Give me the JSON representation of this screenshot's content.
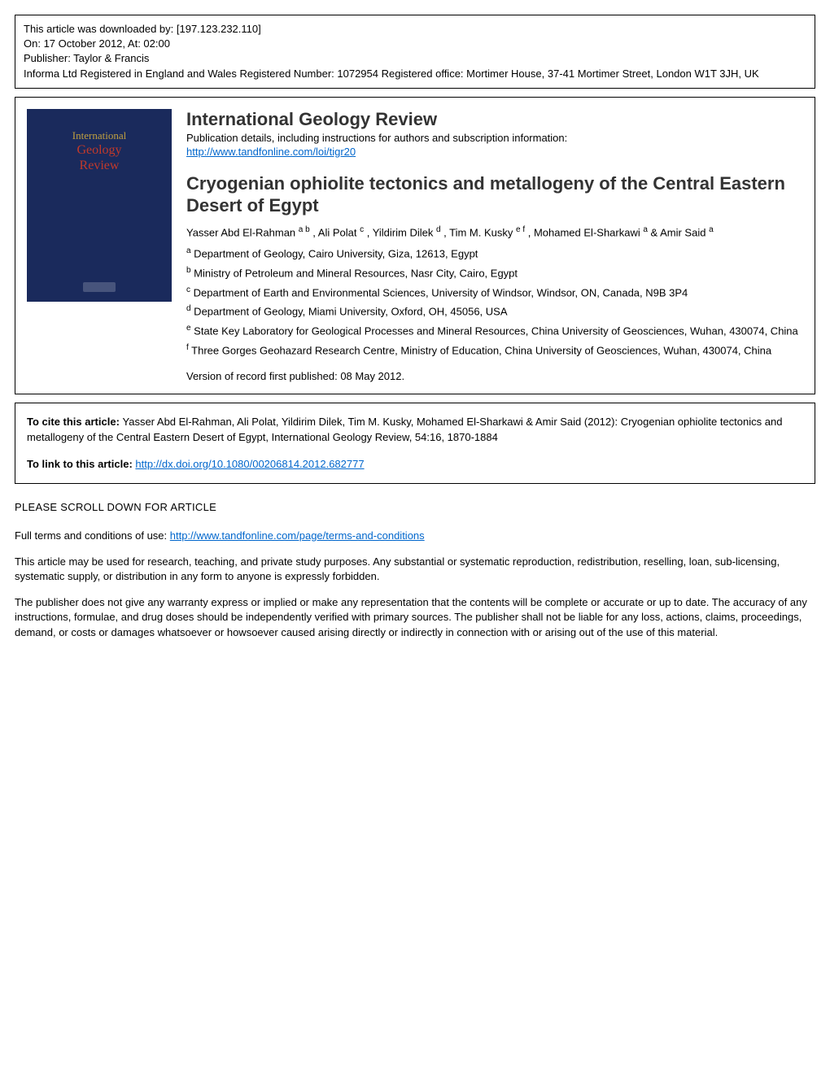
{
  "download_info": {
    "line1": "This article was downloaded by: [197.123.232.110]",
    "line2": "On: 17 October 2012, At: 02:00",
    "line3": "Publisher: Taylor & Francis",
    "line4": "Informa Ltd Registered in England and Wales Registered Number: 1072954 Registered office: Mortimer House, 37-41 Mortimer Street, London W1T 3JH, UK"
  },
  "cover": {
    "intl": "International",
    "geology": "Geology",
    "review": "Review"
  },
  "journal": {
    "title": "International Geology Review",
    "pub_details": "Publication details, including instructions for authors and subscription information:",
    "url": "http://www.tandfonline.com/loi/tigr20"
  },
  "article": {
    "title": "Cryogenian ophiolite tectonics and metallogeny of the Central Eastern Desert of Egypt",
    "authors_html": "Yasser Abd El-Rahman <sup>a b</sup> , Ali Polat <sup>c</sup> , Yildirim Dilek <sup>d</sup> , Tim M. Kusky <sup>e f</sup> , Mohamed El-Sharkawi <sup>a</sup> & Amir Said <sup>a</sup>",
    "affiliations": [
      {
        "sup": "a",
        "text": " Department of Geology, Cairo University, Giza, 12613, Egypt"
      },
      {
        "sup": "b",
        "text": " Ministry of Petroleum and Mineral Resources, Nasr City, Cairo, Egypt"
      },
      {
        "sup": "c",
        "text": " Department of Earth and Environmental Sciences, University of Windsor, Windsor, ON, Canada, N9B 3P4"
      },
      {
        "sup": "d",
        "text": " Department of Geology, Miami University, Oxford, OH, 45056, USA"
      },
      {
        "sup": "e",
        "text": " State Key Laboratory for Geological Processes and Mineral Resources, China University of Geosciences, Wuhan, 430074, China"
      },
      {
        "sup": "f",
        "text": " Three Gorges Geohazard Research Centre, Ministry of Education, China University of Geosciences, Wuhan, 430074, China"
      }
    ],
    "version": "Version of record first published: 08 May 2012."
  },
  "citation": {
    "cite_label": "To cite this article: ",
    "cite_text": "Yasser Abd El-Rahman, Ali Polat, Yildirim Dilek, Tim M. Kusky, Mohamed El-Sharkawi & Amir Said (2012): Cryogenian ophiolite tectonics and metallogeny of the Central Eastern Desert of Egypt, International Geology Review, 54:16, 1870-1884",
    "link_label": "To link to this article:  ",
    "doi": "http://dx.doi.org/10.1080/00206814.2012.682777"
  },
  "scroll": "PLEASE SCROLL DOWN FOR ARTICLE",
  "terms": {
    "intro": "Full terms and conditions of use: ",
    "url": "http://www.tandfonline.com/page/terms-and-conditions",
    "para1": "This article may be used for research, teaching, and private study purposes. Any substantial or systematic reproduction, redistribution, reselling, loan, sub-licensing, systematic supply, or distribution in any form to anyone is expressly forbidden.",
    "para2": "The publisher does not give any warranty express or implied or make any representation that the contents will be complete or accurate or up to date. The accuracy of any instructions, formulae, and drug doses should be independently verified with primary sources. The publisher shall not be liable for any loss, actions, claims, proceedings, demand, or costs or damages whatsoever or howsoever caused arising directly or indirectly in connection with or arising out of the use of this material."
  },
  "colors": {
    "link": "#0066cc",
    "cover_bg": "#1a2a5c",
    "cover_accent": "#c0392b",
    "border": "#000000",
    "text": "#000000"
  }
}
